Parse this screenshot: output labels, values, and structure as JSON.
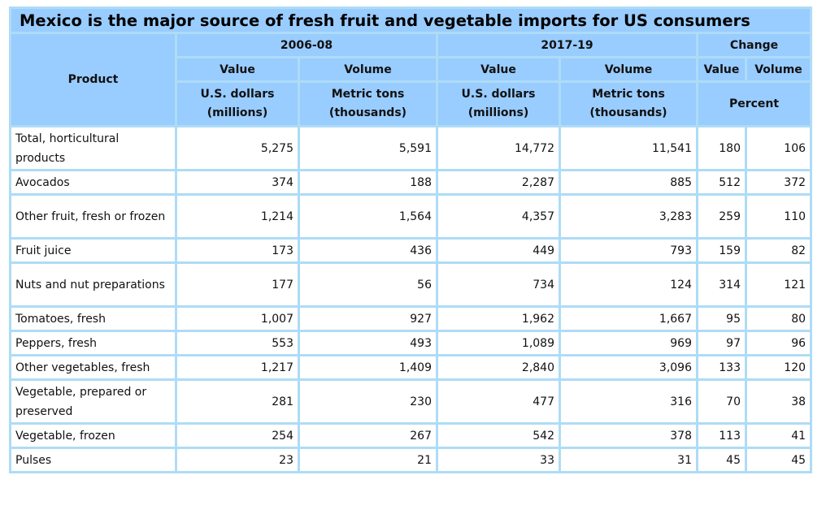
{
  "title": "Mexico is the major source of fresh fruit and vegetable imports for US consumers",
  "header": {
    "product": "Product",
    "period1": "2006-08",
    "period2": "2017-19",
    "change": "Change",
    "value": "Value",
    "volume": "Volume",
    "usd_line1": "U.S. dollars",
    "usd_line2": "(millions)",
    "mt_line1": "Metric tons",
    "mt_line2": "(thousands)",
    "percent": "Percent"
  },
  "colors": {
    "header_bg": "#99ccff",
    "border": "#aedcf6"
  },
  "rows": [
    {
      "product": "Total, horticultural products",
      "v1": "5,275",
      "q1": "5,591",
      "v2": "14,772",
      "q2": "11,541",
      "cv": "180",
      "cq": "106"
    },
    {
      "product": "Avocados",
      "v1": "374",
      "q1": "188",
      "v2": "2,287",
      "q2": "885",
      "cv": "512",
      "cq": "372"
    },
    {
      "product": "Other fruit, fresh or frozen",
      "v1": "1,214",
      "q1": "1,564",
      "v2": "4,357",
      "q2": "3,283",
      "cv": "259",
      "cq": "110"
    },
    {
      "product": "Fruit juice",
      "v1": "173",
      "q1": "436",
      "v2": "449",
      "q2": "793",
      "cv": "159",
      "cq": "82"
    },
    {
      "product": "Nuts and nut preparations",
      "v1": "177",
      "q1": "56",
      "v2": "734",
      "q2": "124",
      "cv": "314",
      "cq": "121"
    },
    {
      "product": "Tomatoes, fresh",
      "v1": "1,007",
      "q1": "927",
      "v2": "1,962",
      "q2": "1,667",
      "cv": "95",
      "cq": "80"
    },
    {
      "product": "Peppers, fresh",
      "v1": "553",
      "q1": "493",
      "v2": "1,089",
      "q2": "969",
      "cv": "97",
      "cq": "96"
    },
    {
      "product": "Other vegetables, fresh",
      "v1": "1,217",
      "q1": "1,409",
      "v2": "2,840",
      "q2": "3,096",
      "cv": "133",
      "cq": "120"
    },
    {
      "product": "Vegetable, prepared or preserved",
      "v1": "281",
      "q1": "230",
      "v2": "477",
      "q2": "316",
      "cv": "70",
      "cq": "38"
    },
    {
      "product": "Vegetable, frozen",
      "v1": "254",
      "q1": "267",
      "v2": "542",
      "q2": "378",
      "cv": "113",
      "cq": "41"
    },
    {
      "product": "Pulses",
      "v1": "23",
      "q1": "21",
      "v2": "33",
      "q2": "31",
      "cv": "45",
      "cq": "45"
    }
  ]
}
